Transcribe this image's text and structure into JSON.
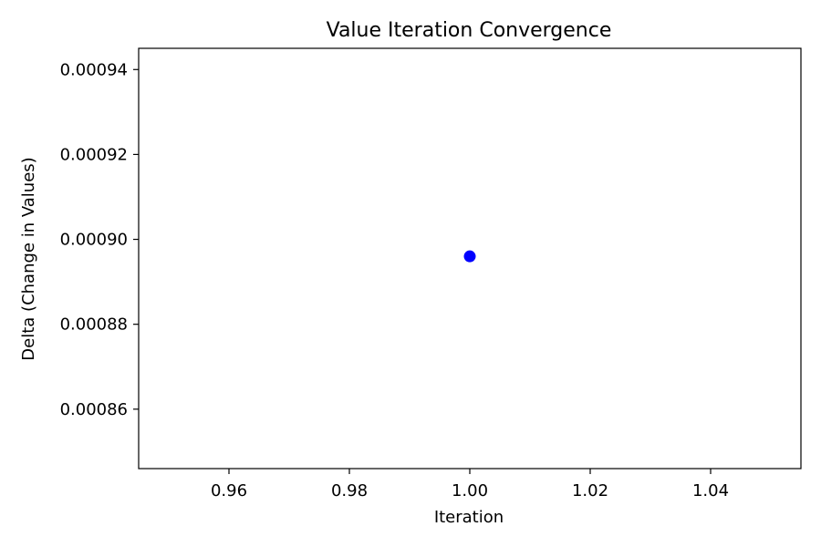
{
  "chart_data": {
    "type": "scatter",
    "title": "Value Iteration Convergence",
    "xlabel": "Iteration",
    "ylabel": "Delta (Change in Values)",
    "xlim": [
      0.945,
      1.055
    ],
    "ylim": [
      0.000846,
      0.000945
    ],
    "x_ticks": [
      0.96,
      0.98,
      1.0,
      1.02,
      1.04
    ],
    "x_tick_labels": [
      "0.96",
      "0.98",
      "1.00",
      "1.02",
      "1.04"
    ],
    "y_ticks": [
      0.00086,
      0.00088,
      0.0009,
      0.00092,
      0.00094
    ],
    "y_tick_labels": [
      "0.00086",
      "0.00088",
      "0.00090",
      "0.00092",
      "0.00094"
    ],
    "grid": false,
    "series": [
      {
        "x": [
          1.0
        ],
        "y": [
          0.000896
        ],
        "color": "#0000ff",
        "marker": "circle"
      }
    ]
  }
}
